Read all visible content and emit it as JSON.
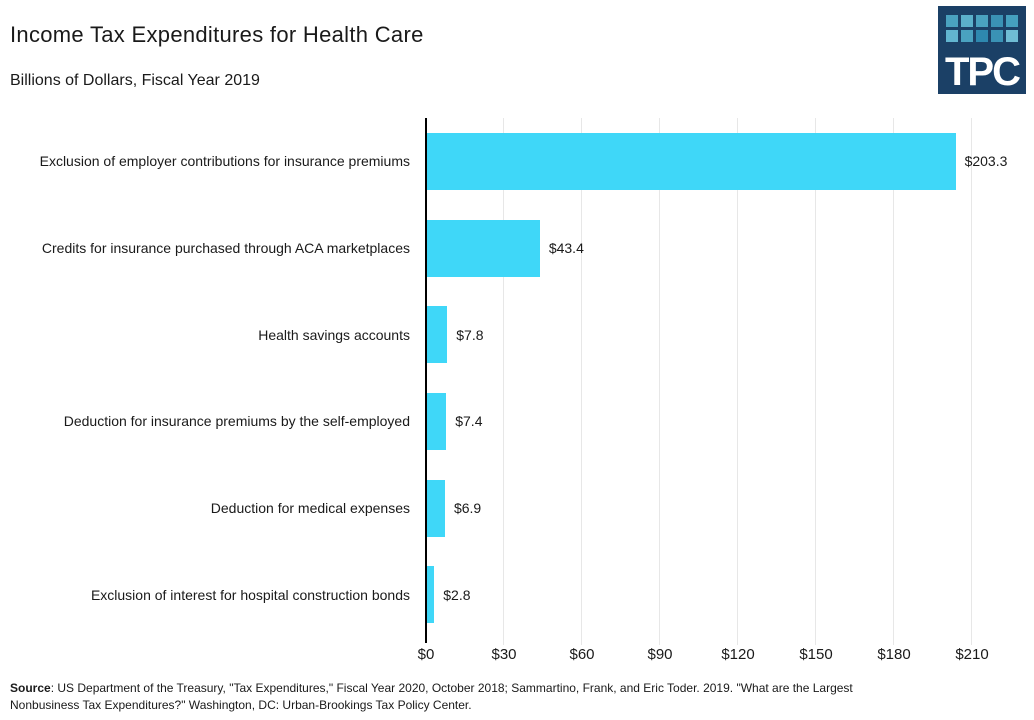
{
  "header": {
    "title": "Income Tax Expenditures for Health Care",
    "subtitle": "Billions of Dollars, Fiscal Year 2019"
  },
  "logo": {
    "text": "TPC",
    "bg_color": "#1B4066",
    "square_colors": [
      "#4AA2C0",
      "#5BB0CB",
      "#4AA2C0",
      "#3A92B5",
      "#45A0BF",
      "#62B5D0",
      "#4AA2C0",
      "#2E88AF",
      "#3A92B5",
      "#6FBCD4"
    ]
  },
  "chart_data": {
    "type": "bar",
    "orientation": "horizontal",
    "title": "Income Tax Expenditures for Health Care",
    "subtitle": "Billions of Dollars, Fiscal Year 2019",
    "categories": [
      "Exclusion of employer contributions for insurance premiums",
      "Credits for insurance purchased through ACA marketplaces",
      "Health savings accounts",
      "Deduction for insurance premiums by the self-employed",
      "Deduction for medical expenses",
      "Exclusion of interest for hospital construction bonds"
    ],
    "values": [
      203.3,
      43.4,
      7.8,
      7.4,
      6.9,
      2.8
    ],
    "value_labels": [
      "$203.3",
      "$43.4",
      "$7.8",
      "$7.4",
      "$6.9",
      "$2.8"
    ],
    "x_tick_values": [
      0,
      30,
      60,
      90,
      120,
      150,
      180,
      210
    ],
    "x_tick_labels": [
      "$0",
      "$30",
      "$60",
      "$90",
      "$120",
      "$150",
      "$180",
      "$210"
    ],
    "xlim": [
      0,
      210
    ],
    "xlabel": "",
    "ylabel": "",
    "bar_color": "#3FD7F8",
    "gridline_color": "#E7E7E7",
    "axis_color": "#000000",
    "grid": true,
    "legend": false
  },
  "footer": {
    "source_label": "Source",
    "source_line1_rest": ": US Department of the Treasury, \"Tax Expenditures,\" Fiscal Year 2020, October 2018; Sammartino, Frank, and Eric Toder. 2019. \"What are the Largest",
    "source_line2": "Nonbusiness Tax Expenditures?\" Washington, DC: Urban-Brookings Tax Policy Center."
  }
}
